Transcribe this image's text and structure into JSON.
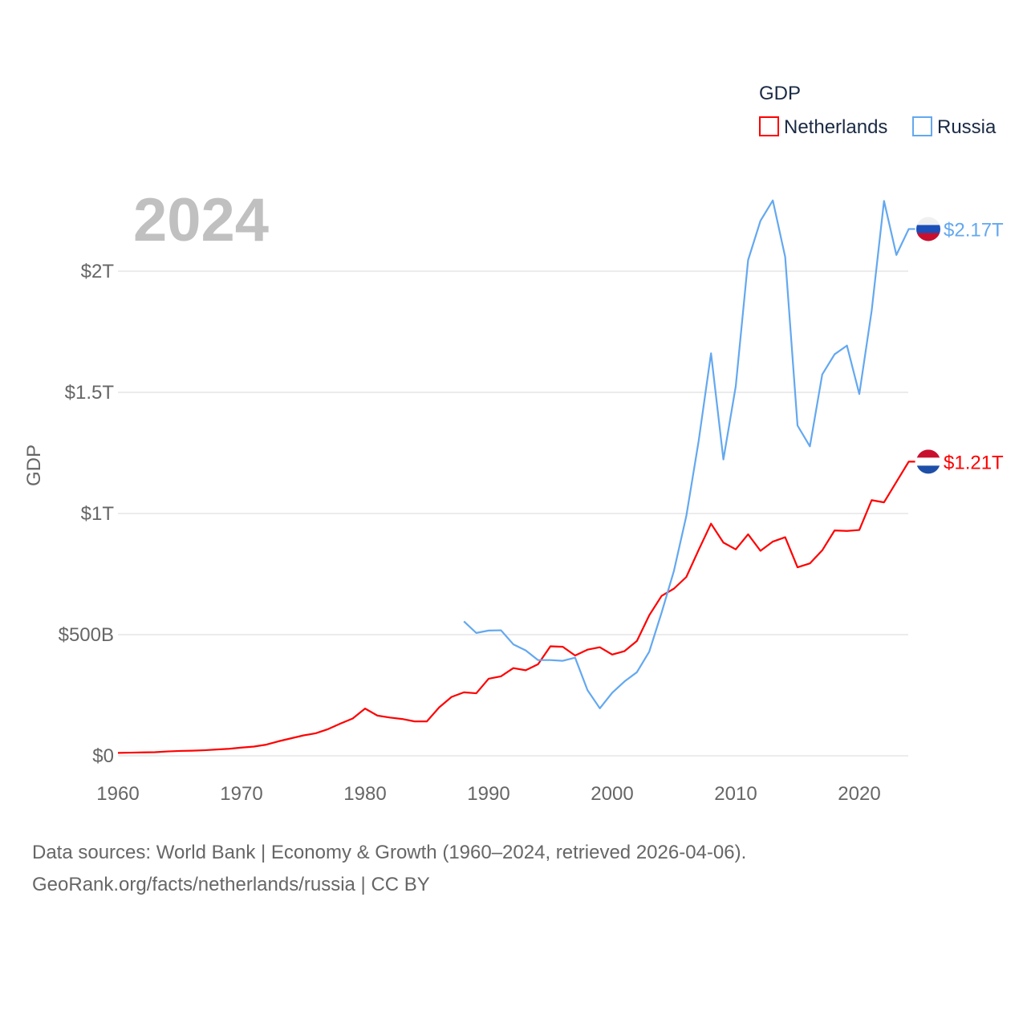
{
  "chart_data": {
    "type": "line",
    "title": "GDP",
    "year_label": "2024",
    "ylabel": "GDP",
    "xlabel": "",
    "xlim": [
      1960,
      2024
    ],
    "ylim": [
      0,
      2300
    ],
    "y_units": "billions USD",
    "x_ticks": [
      "1960",
      "1970",
      "1980",
      "1990",
      "2000",
      "2010",
      "2020"
    ],
    "x_tick_values": [
      1960,
      1970,
      1980,
      1990,
      2000,
      2010,
      2020
    ],
    "y_ticks": [
      "$0",
      "$500B",
      "$1T",
      "$1.5T",
      "$2T"
    ],
    "y_tick_values": [
      0,
      500,
      1000,
      1500,
      2000
    ],
    "grid": true,
    "legend_position": "top-right",
    "series": [
      {
        "name": "Netherlands",
        "color": "#ff0000",
        "end_label": "$1.21T",
        "start_year": 1960,
        "values": [
          12,
          13,
          14,
          15,
          18,
          20,
          21,
          23,
          26,
          29,
          34,
          38,
          46,
          60,
          72,
          84,
          93,
          110,
          133,
          154,
          195,
          166,
          158,
          152,
          142,
          142,
          200,
          243,
          262,
          258,
          318,
          328,
          362,
          353,
          378,
          452,
          450,
          414,
          438,
          448,
          418,
          432,
          474,
          580,
          660,
          690,
          738,
          850,
          958,
          880,
          852,
          914,
          846,
          884,
          902,
          778,
          794,
          848,
          930,
          928,
          932,
          1055,
          1046,
          1130,
          1214
        ]
      },
      {
        "name": "Russia",
        "color": "#63a8f0",
        "end_label": "$2.17T",
        "start_year": 1988,
        "values": [
          555,
          507,
          517,
          518,
          460,
          435,
          395,
          395,
          392,
          405,
          271,
          196,
          260,
          307,
          345,
          430,
          591,
          764,
          990,
          1300,
          1661,
          1223,
          1525,
          2046,
          2208,
          2292,
          2059,
          1363,
          1277,
          1574,
          1657,
          1693,
          1493,
          1837,
          2290,
          2067,
          2174
        ]
      }
    ]
  },
  "source": {
    "line1": "Data sources: World Bank | Economy & Growth (1960–2024, retrieved 2026-04-06).",
    "line2": "GeoRank.org/facts/netherlands/russia | CC BY"
  }
}
